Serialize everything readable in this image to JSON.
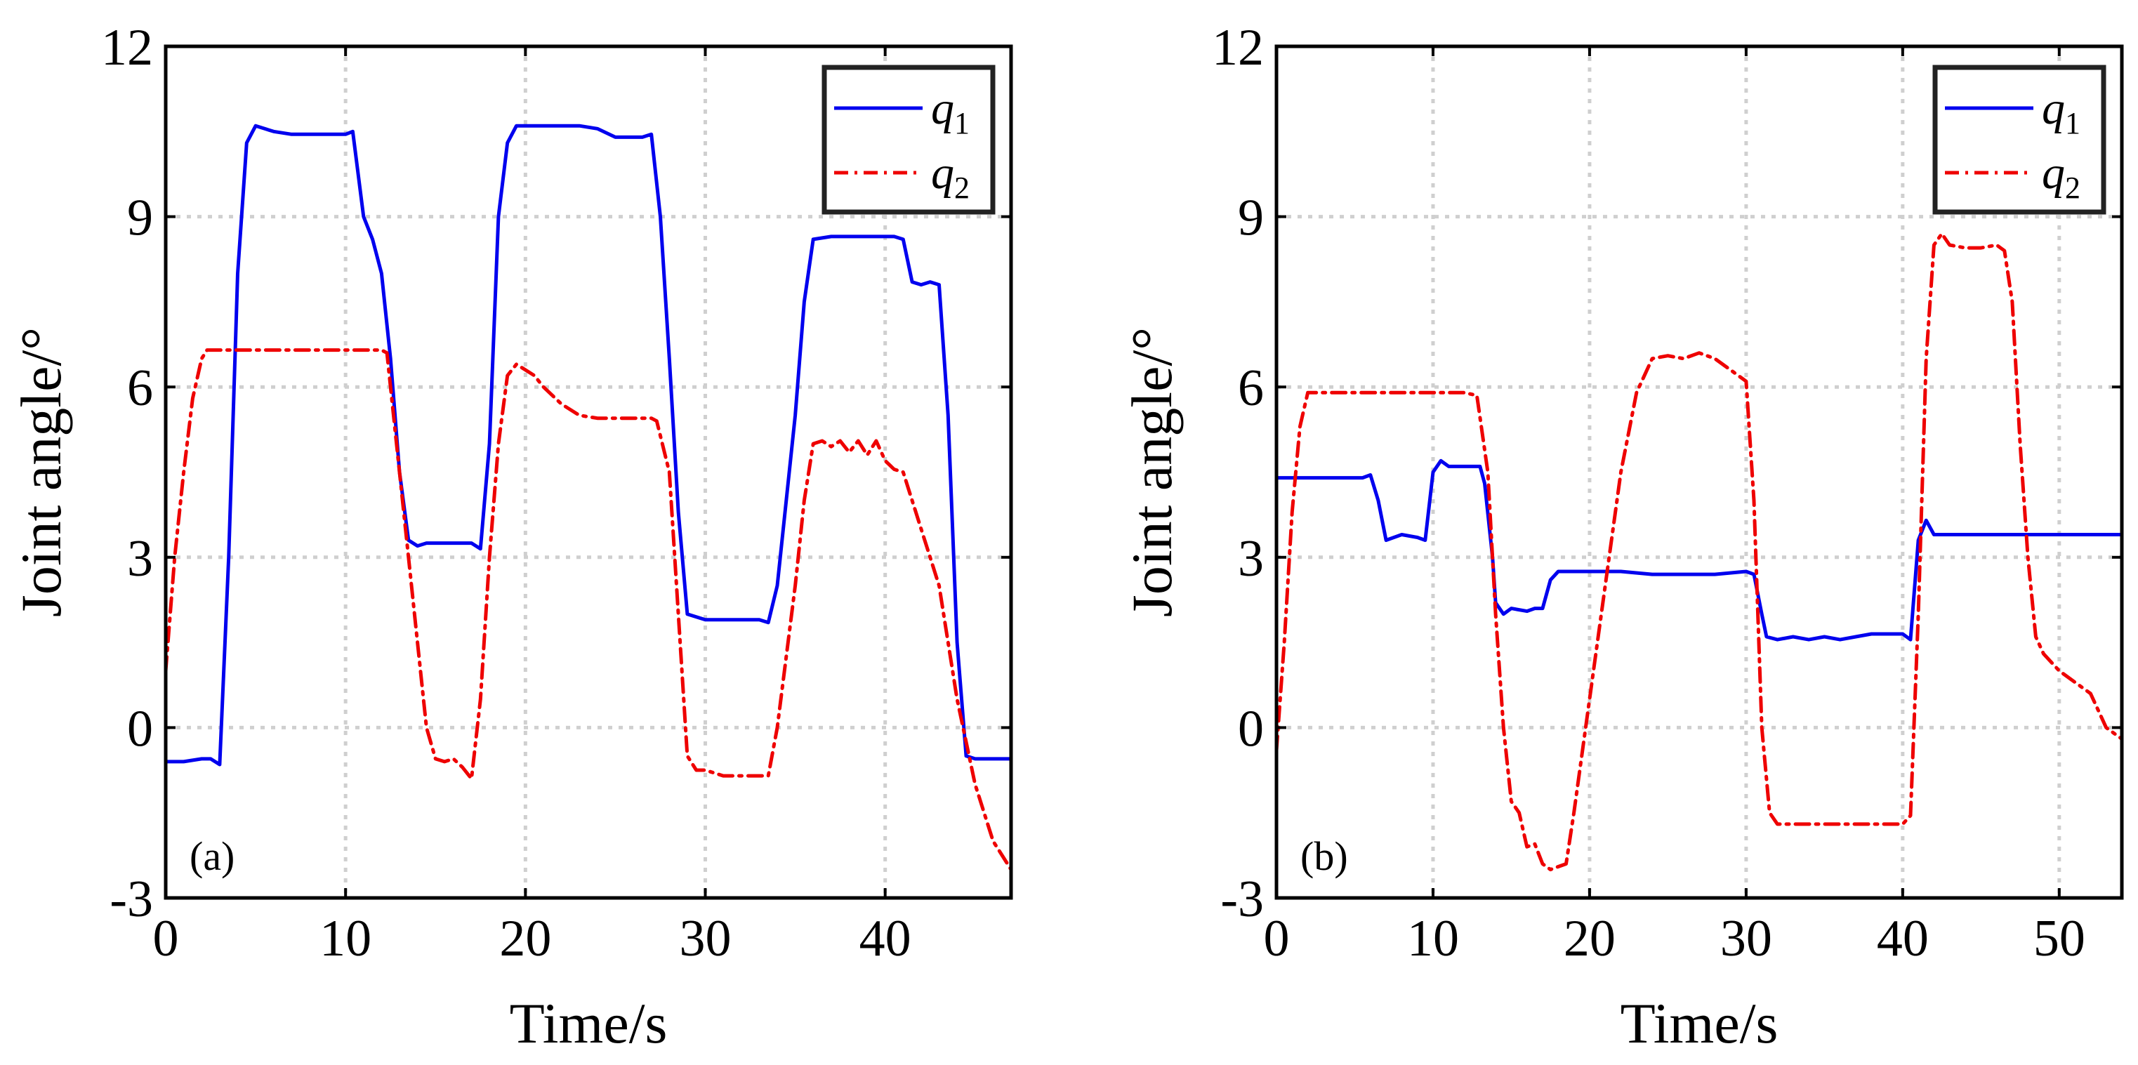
{
  "chart_data": [
    {
      "type": "line",
      "panel_label": "(a)",
      "xlabel": "Time/s",
      "ylabel": "Joint angle/°",
      "xlim": [
        0,
        47
      ],
      "ylim": [
        -3,
        12
      ],
      "xticks": [
        "0",
        "10",
        "20",
        "30",
        "40"
      ],
      "yticks": [
        "-3",
        "0",
        "3",
        "6",
        "9",
        "12"
      ],
      "grid": true,
      "legend_position": "top-right",
      "series": [
        {
          "name": "q1",
          "color": "#0000ee",
          "style": "solid",
          "x": [
            0,
            1,
            2,
            2.5,
            3,
            3.5,
            4,
            4.5,
            5,
            5.5,
            6,
            7,
            8,
            9,
            10,
            10.4,
            11,
            11.5,
            12,
            12.5,
            13,
            13.5,
            14,
            14.5,
            15,
            16,
            17,
            17.5,
            18,
            18.5,
            19,
            19.5,
            20,
            21,
            22,
            23,
            24,
            25,
            26,
            26.5,
            27,
            27.5,
            28,
            28.5,
            29,
            30,
            31,
            32,
            33,
            33.5,
            34,
            35,
            35.5,
            36,
            37,
            38,
            39,
            40,
            40.5,
            41,
            41.5,
            42,
            42.5,
            43,
            43.5,
            44,
            44.5,
            45,
            46,
            47
          ],
          "values": [
            -0.6,
            -0.6,
            -0.55,
            -0.55,
            -0.65,
            3.0,
            8.0,
            10.3,
            10.6,
            10.55,
            10.5,
            10.45,
            10.45,
            10.45,
            10.45,
            10.5,
            9.0,
            8.6,
            8.0,
            6.5,
            4.5,
            3.3,
            3.2,
            3.25,
            3.25,
            3.25,
            3.25,
            3.15,
            5.0,
            9.0,
            10.3,
            10.6,
            10.6,
            10.6,
            10.6,
            10.6,
            10.55,
            10.4,
            10.4,
            10.4,
            10.45,
            9.0,
            6.5,
            3.8,
            2.0,
            1.9,
            1.9,
            1.9,
            1.9,
            1.85,
            2.5,
            5.5,
            7.5,
            8.6,
            8.65,
            8.65,
            8.65,
            8.65,
            8.65,
            8.6,
            7.85,
            7.8,
            7.85,
            7.8,
            5.5,
            1.5,
            -0.5,
            -0.55,
            -0.55,
            -0.55
          ]
        },
        {
          "name": "q2",
          "color": "#ee0000",
          "style": "dashdot",
          "x": [
            0,
            0.5,
            1,
            1.5,
            2,
            2.3,
            3,
            5,
            7,
            9,
            11,
            12,
            12.3,
            13,
            14,
            14.5,
            15,
            15.5,
            16,
            16.5,
            17,
            17.5,
            18,
            18.5,
            19,
            19.5,
            20,
            20.5,
            21,
            22,
            23,
            24,
            25,
            26,
            27,
            27.3,
            28,
            28.5,
            29,
            29.5,
            30,
            31,
            32,
            33,
            33.5,
            34,
            35,
            35.5,
            36,
            36.5,
            37,
            37.5,
            38,
            38.5,
            39,
            39.5,
            40,
            40.5,
            41,
            41.5,
            42,
            42.5,
            43,
            44,
            45,
            46,
            47
          ],
          "values": [
            1.0,
            3.0,
            4.5,
            5.8,
            6.5,
            6.65,
            6.65,
            6.65,
            6.65,
            6.65,
            6.65,
            6.65,
            6.6,
            4.5,
            1.5,
            0.0,
            -0.55,
            -0.6,
            -0.55,
            -0.7,
            -0.9,
            0.5,
            3.0,
            5.0,
            6.2,
            6.4,
            6.3,
            6.2,
            6.0,
            5.7,
            5.5,
            5.45,
            5.45,
            5.45,
            5.45,
            5.4,
            4.5,
            2.0,
            -0.5,
            -0.75,
            -0.75,
            -0.85,
            -0.85,
            -0.85,
            -0.85,
            0.0,
            2.5,
            4.0,
            5.0,
            5.05,
            4.95,
            5.05,
            4.85,
            5.05,
            4.8,
            5.05,
            4.7,
            4.55,
            4.5,
            4.0,
            3.5,
            3.0,
            2.5,
            0.5,
            -1.0,
            -2.0,
            -2.5
          ]
        }
      ]
    },
    {
      "type": "line",
      "panel_label": "(b)",
      "xlabel": "Time/s",
      "ylabel": "Joint angle/°",
      "xlim": [
        0,
        54
      ],
      "ylim": [
        -3,
        12
      ],
      "xticks": [
        "0",
        "10",
        "20",
        "30",
        "40",
        "50"
      ],
      "yticks": [
        "-3",
        "0",
        "3",
        "6",
        "9",
        "12"
      ],
      "grid": true,
      "legend_position": "top-right",
      "series": [
        {
          "name": "q1",
          "color": "#0000ee",
          "style": "solid",
          "x": [
            0,
            2,
            4,
            5.5,
            6,
            6.5,
            7,
            8,
            9,
            9.5,
            10,
            10.5,
            11,
            12,
            13,
            13.3,
            13.8,
            14,
            14.5,
            15,
            16,
            16.5,
            17,
            17.5,
            18,
            20,
            22,
            24,
            26,
            28,
            30,
            30.5,
            31,
            31.3,
            32,
            33,
            34,
            35,
            36,
            37,
            38,
            39,
            40,
            40.5,
            41,
            41.5,
            42,
            44,
            46,
            48,
            50,
            52,
            54
          ],
          "values": [
            4.4,
            4.4,
            4.4,
            4.4,
            4.45,
            4.0,
            3.3,
            3.4,
            3.35,
            3.3,
            4.5,
            4.7,
            4.6,
            4.6,
            4.6,
            4.3,
            3.0,
            2.2,
            2.0,
            2.1,
            2.05,
            2.1,
            2.1,
            2.6,
            2.75,
            2.75,
            2.75,
            2.7,
            2.7,
            2.7,
            2.75,
            2.7,
            2.0,
            1.6,
            1.55,
            1.6,
            1.55,
            1.6,
            1.55,
            1.6,
            1.65,
            1.65,
            1.65,
            1.55,
            3.3,
            3.65,
            3.4,
            3.4,
            3.4,
            3.4,
            3.4,
            3.4,
            3.4
          ]
        },
        {
          "name": "q2",
          "color": "#ee0000",
          "style": "dashdot",
          "x": [
            0,
            0.5,
            1,
            1.5,
            2,
            4,
            6,
            8,
            10,
            12,
            12.8,
            13.5,
            14,
            14.5,
            15,
            15.5,
            16,
            16.5,
            17,
            17.5,
            18,
            18.5,
            19,
            20,
            21,
            22,
            23,
            24,
            25,
            26,
            27,
            28,
            29,
            30,
            30.5,
            31,
            31.5,
            32,
            34,
            36,
            38,
            40,
            40.5,
            41,
            41.5,
            42,
            42.5,
            43,
            44,
            45,
            46,
            46.5,
            47,
            47.5,
            48,
            48.5,
            49,
            50,
            51,
            52,
            53,
            54
          ],
          "values": [
            -0.4,
            1.5,
            3.8,
            5.3,
            5.9,
            5.9,
            5.9,
            5.9,
            5.9,
            5.9,
            5.85,
            4.5,
            2.0,
            0.0,
            -1.3,
            -1.5,
            -2.1,
            -2.05,
            -2.4,
            -2.5,
            -2.45,
            -2.4,
            -1.5,
            0.5,
            2.5,
            4.5,
            5.9,
            6.5,
            6.55,
            6.5,
            6.6,
            6.5,
            6.3,
            6.1,
            4.0,
            0.0,
            -1.5,
            -1.7,
            -1.7,
            -1.7,
            -1.7,
            -1.7,
            -1.55,
            2.0,
            6.5,
            8.5,
            8.7,
            8.5,
            8.45,
            8.45,
            8.5,
            8.4,
            7.5,
            5.0,
            3.0,
            1.6,
            1.3,
            1.0,
            0.8,
            0.6,
            0.0,
            -0.2
          ]
        }
      ]
    }
  ]
}
